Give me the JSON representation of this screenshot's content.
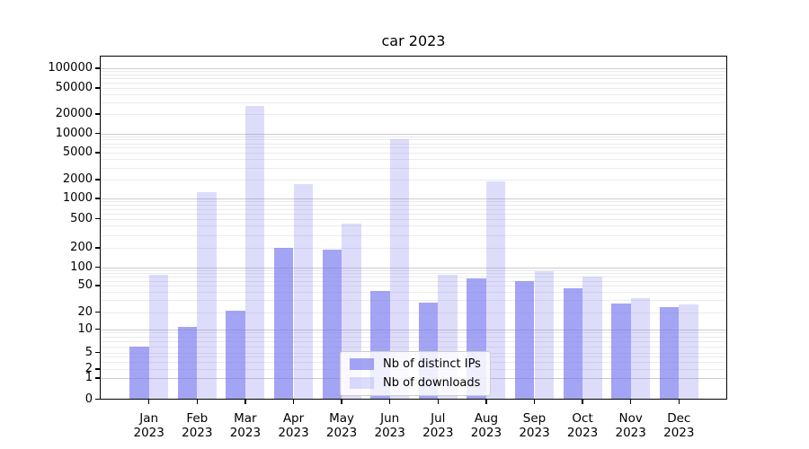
{
  "title": "car 2023",
  "legend": {
    "items": [
      {
        "label": "Nb of distinct IPs"
      },
      {
        "label": "Nb of downloads"
      }
    ]
  },
  "chart_data": {
    "type": "bar",
    "title": "car 2023",
    "categories": [
      "Jan",
      "Feb",
      "Mar",
      "Apr",
      "May",
      "Jun",
      "Jul",
      "Aug",
      "Sep",
      "Oct",
      "Nov",
      "Dec"
    ],
    "category_year": "2023",
    "series": [
      {
        "name": "Nb of distinct IPs",
        "color": "#a4a4f4",
        "values": [
          6,
          11,
          21,
          200,
          190,
          42,
          28,
          65,
          60,
          45,
          27,
          24
        ]
      },
      {
        "name": "Nb of downloads",
        "color": "#dcdcfb",
        "values": [
          75,
          1250,
          27000,
          1700,
          430,
          8200,
          76,
          1900,
          85,
          70,
          32,
          26
        ]
      }
    ],
    "yticks": [
      0,
      1,
      2,
      5,
      10,
      20,
      50,
      100,
      200,
      500,
      1000,
      2000,
      5000,
      10000,
      20000,
      50000,
      100000
    ],
    "scale": "symlog",
    "ylim": [
      0,
      150000
    ],
    "xlabel": "",
    "ylabel": "",
    "grid": true,
    "legend_position": "lower center"
  }
}
